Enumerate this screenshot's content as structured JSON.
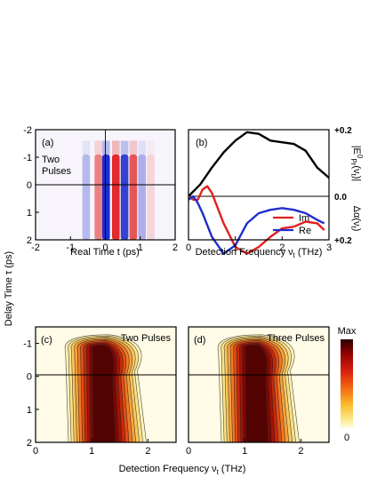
{
  "figure": {
    "shared_ylabel": "Delay Time τ (ps)",
    "colorbar": {
      "max_label": "Max",
      "min_label": "0"
    }
  },
  "chart_data": [
    {
      "panel": "a",
      "type": "heatmap",
      "label": "(a)",
      "annotation": "Two\nPulses",
      "xlabel": "Real Time t (ps)",
      "x_ticks": [
        "-2",
        "-1",
        "0",
        "1",
        "2"
      ],
      "y_ticks": [
        "-2",
        "-1",
        "0",
        "1",
        "2"
      ],
      "xlim": [
        -2,
        2
      ],
      "ylim": [
        -2,
        2
      ],
      "y_inverted": true,
      "fringes": [
        {
          "t": -0.55,
          "sign": "neg",
          "strength": 0.3
        },
        {
          "t": -0.2,
          "sign": "pos",
          "strength": 0.55
        },
        {
          "t": 0.02,
          "sign": "neg",
          "strength": 1.0
        },
        {
          "t": 0.3,
          "sign": "pos",
          "strength": 0.95
        },
        {
          "t": 0.55,
          "sign": "neg",
          "strength": 0.9
        },
        {
          "t": 0.8,
          "sign": "pos",
          "strength": 0.75
        },
        {
          "t": 1.05,
          "sign": "neg",
          "strength": 0.35
        },
        {
          "t": 1.3,
          "sign": "pos",
          "strength": 0.15
        }
      ],
      "colors": {
        "pos": "#e0201f",
        "neg": "#1f2ecc"
      }
    },
    {
      "panel": "b",
      "type": "line",
      "label": "(b)",
      "xlabel": "Detection Frequency ν_t (THz)",
      "ylabel_top": "|E⁰_Pr(ν_t)|",
      "ylabel_bottom": "Δα(ν_t)",
      "x_ticks": [
        "0",
        "1",
        "2",
        "3"
      ],
      "right_ticks": [
        "+0.2",
        "0.0",
        "+0.2"
      ],
      "xlim": [
        0,
        3
      ],
      "series": [
        {
          "name": "",
          "color": "#000000",
          "x": [
            0,
            0.25,
            0.5,
            0.75,
            1.0,
            1.25,
            1.5,
            1.75,
            2.0,
            2.25,
            2.5,
            2.75,
            3.0
          ],
          "y": [
            0.0,
            0.035,
            0.085,
            0.13,
            0.165,
            0.19,
            0.185,
            0.165,
            0.16,
            0.155,
            0.135,
            0.085,
            0.055
          ]
        },
        {
          "name": "Im",
          "color": "#e0201f",
          "x": [
            0,
            0.1,
            0.2,
            0.3,
            0.4,
            0.5,
            0.75,
            1.0,
            1.25,
            1.5,
            1.75,
            2.0,
            2.25,
            2.5,
            2.75,
            2.9
          ],
          "y": [
            0.0,
            -0.01,
            -0.01,
            0.02,
            0.03,
            0.01,
            -0.08,
            -0.15,
            -0.17,
            -0.15,
            -0.12,
            -0.095,
            -0.09,
            -0.075,
            -0.08,
            -0.1
          ]
        },
        {
          "name": "Re",
          "color": "#1f2ecc",
          "x": [
            0,
            0.1,
            0.2,
            0.3,
            0.5,
            0.75,
            1.0,
            1.25,
            1.5,
            1.75,
            2.0,
            2.25,
            2.5,
            2.75,
            2.9
          ],
          "y": [
            -0.01,
            0.0,
            -0.02,
            -0.05,
            -0.12,
            -0.17,
            -0.145,
            -0.08,
            -0.05,
            -0.04,
            -0.035,
            -0.04,
            -0.05,
            -0.07,
            -0.08
          ]
        }
      ]
    },
    {
      "panel": "c",
      "type": "heatmap",
      "label": "(c)",
      "title": "Two Pulses",
      "xlabel": "Detection Frequency ν_t (THz)",
      "x_ticks": [
        "0",
        "1",
        "2"
      ],
      "y_ticks": [
        "-1",
        "0",
        "1",
        "2"
      ],
      "xlim": [
        0,
        2.5
      ],
      "ylim": [
        -1.5,
        2
      ],
      "y_inverted": true,
      "peak_frequency": 1.2,
      "levels": 10
    },
    {
      "panel": "d",
      "type": "heatmap",
      "label": "(d)",
      "title": "Three Pulses",
      "x_ticks": [
        "0",
        "1",
        "2"
      ],
      "xlim": [
        0,
        2.5
      ],
      "ylim": [
        -1.5,
        2
      ],
      "y_inverted": true,
      "peak_frequency": 1.2,
      "levels": 10
    }
  ]
}
